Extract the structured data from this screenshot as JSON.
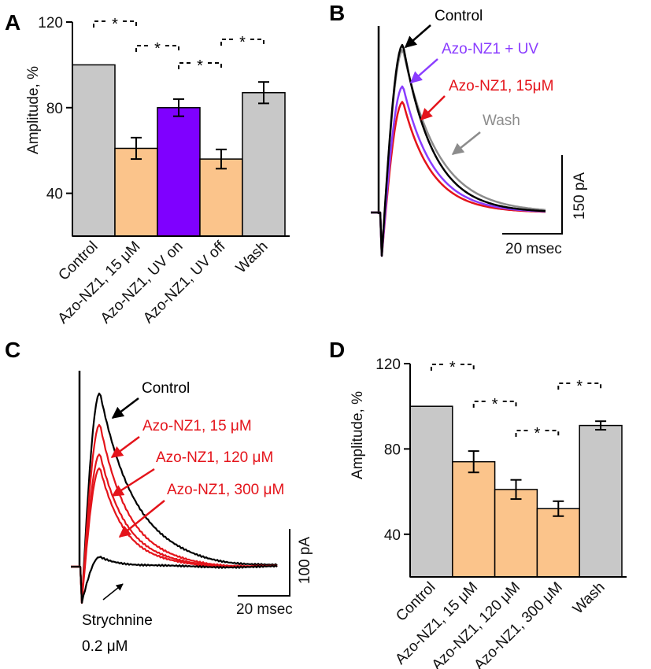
{
  "colors": {
    "gray": "#c8c8c8",
    "orange": "#fbc48b",
    "purple": "#7f00ff",
    "trace_red": "#e4141b",
    "trace_purple": "#8a3cff",
    "trace_gray": "#8c8c8c",
    "black": "#000000"
  },
  "panel_letters": [
    "A",
    "B",
    "C",
    "D"
  ],
  "sig_marker": "*",
  "chart_data": [
    {
      "panel": "A",
      "type": "bar",
      "ylabel": "Amplitude, %",
      "ylim": [
        20,
        120
      ],
      "yticks": [
        40,
        80,
        120
      ],
      "categories": [
        "Control",
        "Azo-NZ1, 15 μM",
        "Azo-NZ1, UV on",
        "Azo-NZ1, UV off",
        "Wash"
      ],
      "values": [
        100,
        61,
        80,
        56,
        87
      ],
      "errors": [
        0,
        5,
        4,
        4.5,
        5
      ],
      "bar_colors": [
        "gray",
        "orange",
        "purple",
        "orange",
        "gray"
      ],
      "significance": [
        [
          0,
          1
        ],
        [
          1,
          2
        ],
        [
          2,
          3
        ],
        [
          3,
          4
        ]
      ]
    },
    {
      "panel": "B",
      "type": "line",
      "annotations": [
        "Control",
        "Azo-NZ1 + UV",
        "Azo-NZ1, 15μM",
        "Wash"
      ],
      "traces": [
        {
          "color": "trace_gray",
          "peak": 0.94,
          "decay": 1.15
        },
        {
          "color": "trace_red",
          "peak": 0.64,
          "decay": 0.95
        },
        {
          "color": "trace_purple",
          "peak": 0.73,
          "decay": 1.0
        },
        {
          "color": "black",
          "peak": 0.97,
          "decay": 1.0
        }
      ],
      "scale_bar": {
        "y_label": "150 pA",
        "x_label": "20 msec"
      }
    },
    {
      "panel": "C",
      "type": "line",
      "annotations": [
        "Control",
        "Azo-NZ1, 15 μM",
        "Azo-NZ1, 120 μM",
        "Azo-NZ1, 300 μM",
        "Strychnine",
        "0.2 μM"
      ],
      "traces": [
        {
          "color": "black",
          "peak": 1.0,
          "decay": 1.0
        },
        {
          "color": "trace_red",
          "peak": 0.82,
          "decay": 0.8
        },
        {
          "color": "trace_red",
          "peak": 0.65,
          "decay": 0.75
        },
        {
          "color": "trace_red",
          "peak": 0.57,
          "decay": 0.7
        },
        {
          "color": "black",
          "peak": 0.06,
          "decay": 0.6
        }
      ],
      "scale_bar": {
        "y_label": "100 pA",
        "x_label": "20 msec"
      }
    },
    {
      "panel": "D",
      "type": "bar",
      "ylabel": "Amplitude, %",
      "ylim": [
        20,
        120
      ],
      "yticks": [
        40,
        80,
        120
      ],
      "categories": [
        "Control",
        "Azo-NZ1, 15 μM",
        "Azo-NZ1, 120 μM",
        "Azo-NZ1, 300 μM",
        "Wash"
      ],
      "values": [
        100,
        74,
        61,
        52,
        91
      ],
      "errors": [
        0,
        5,
        4.5,
        3.5,
        2
      ],
      "bar_colors": [
        "gray",
        "orange",
        "orange",
        "orange",
        "gray"
      ],
      "significance": [
        [
          0,
          1
        ],
        [
          1,
          2
        ],
        [
          2,
          3
        ],
        [
          3,
          4
        ]
      ]
    }
  ]
}
